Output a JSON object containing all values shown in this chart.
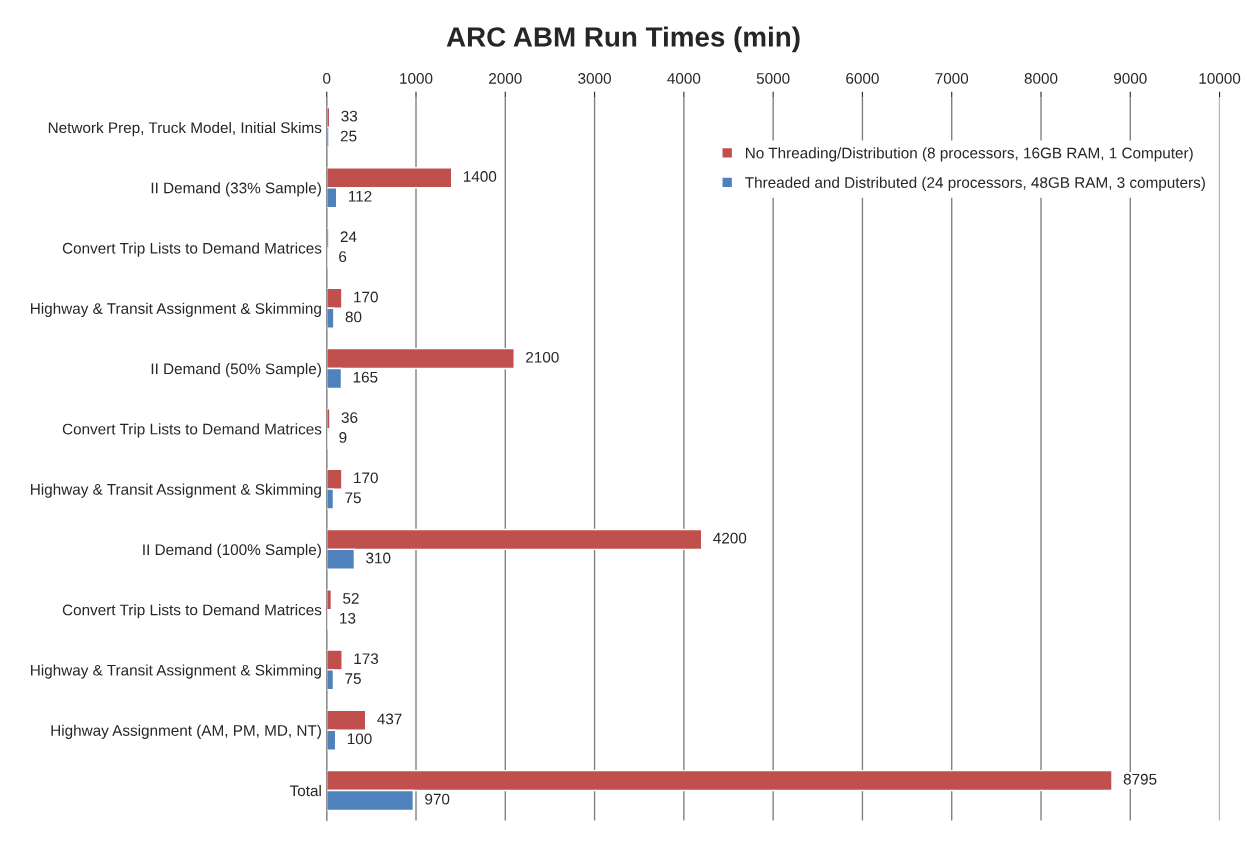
{
  "chart_data": {
    "type": "bar",
    "orientation": "horizontal",
    "title": "ARC ABM Run Times (min)",
    "categories": [
      "Network Prep, Truck Model, Initial Skims",
      "II Demand (33% Sample)",
      "Convert Trip Lists to Demand Matrices",
      "Highway & Transit Assignment & Skimming",
      "II Demand (50% Sample)",
      "Convert Trip Lists to Demand Matrices",
      "Highway & Transit Assignment & Skimming",
      "II Demand (100% Sample)",
      "Convert Trip Lists to Demand Matrices",
      "Highway & Transit Assignment & Skimming",
      "Highway Assignment (AM, PM, MD, NT)",
      "Total"
    ],
    "series": [
      {
        "name": "No Threading/Distribution (8 processors, 16GB RAM, 1 Computer)",
        "color": "#c0504d",
        "values": [
          33,
          1400,
          24,
          170,
          2100,
          36,
          170,
          4200,
          52,
          173,
          437,
          8795
        ]
      },
      {
        "name": "Threaded and Distributed (24 processors, 48GB RAM, 3 computers)",
        "color": "#4f81bd",
        "values": [
          25,
          112,
          6,
          80,
          165,
          9,
          75,
          310,
          13,
          75,
          100,
          970
        ]
      }
    ],
    "xlim": [
      0,
      10000
    ],
    "xticks": [
      0,
      1000,
      2000,
      3000,
      4000,
      5000,
      6000,
      7000,
      8000,
      9000,
      10000
    ],
    "grid": "x",
    "legend": "top right",
    "data_labels": true
  }
}
